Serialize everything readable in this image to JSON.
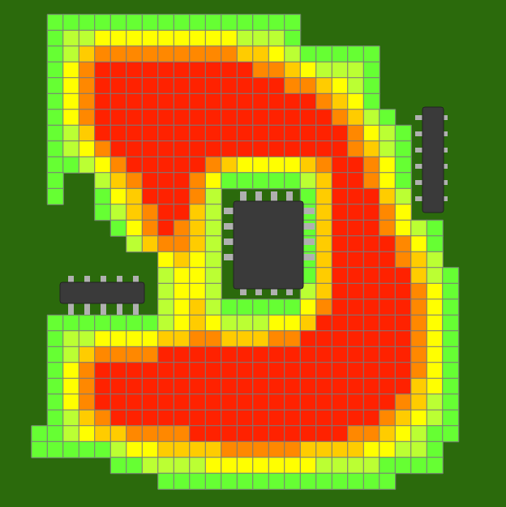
{
  "chart_data": {
    "type": "heatmap",
    "tick_labels": false,
    "color_range": [
      1,
      6
    ],
    "colors": [
      "#66ff33",
      "#bbff33",
      "#ffff00",
      "#ffcc00",
      "#ff8800",
      "#ff2200"
    ],
    "cells": [
      [
        null,
        1,
        1,
        1,
        1,
        1,
        1,
        1,
        1,
        1,
        1,
        1,
        1,
        1,
        1,
        1,
        1,
        null,
        null,
        null,
        null,
        null,
        null,
        null,
        null,
        null,
        null
      ],
      [
        null,
        1,
        2,
        2,
        3,
        3,
        3,
        3,
        3,
        3,
        3,
        3,
        3,
        2,
        2,
        2,
        1,
        null,
        null,
        null,
        null,
        null,
        null,
        null,
        null,
        null,
        null
      ],
      [
        null,
        1,
        2,
        4,
        5,
        5,
        5,
        5,
        5,
        5,
        5,
        5,
        5,
        4,
        4,
        3,
        2,
        1,
        1,
        1,
        1,
        1,
        null,
        null,
        null,
        null,
        null
      ],
      [
        null,
        1,
        3,
        5,
        6,
        6,
        6,
        6,
        6,
        6,
        6,
        6,
        6,
        6,
        5,
        5,
        4,
        3,
        2,
        2,
        2,
        1,
        null,
        null,
        null,
        null,
        null
      ],
      [
        null,
        1,
        3,
        5,
        6,
        6,
        6,
        6,
        6,
        6,
        6,
        6,
        6,
        6,
        6,
        6,
        5,
        5,
        4,
        3,
        2,
        1,
        null,
        null,
        null,
        null,
        null
      ],
      [
        null,
        1,
        3,
        5,
        6,
        6,
        6,
        6,
        6,
        6,
        6,
        6,
        6,
        6,
        6,
        6,
        6,
        6,
        5,
        4,
        3,
        1,
        null,
        null,
        null,
        null,
        null
      ],
      [
        null,
        1,
        3,
        5,
        6,
        6,
        6,
        6,
        6,
        6,
        6,
        6,
        6,
        6,
        6,
        6,
        6,
        6,
        6,
        5,
        4,
        2,
        1,
        null,
        null,
        null,
        null
      ],
      [
        null,
        1,
        2,
        4,
        6,
        6,
        6,
        6,
        6,
        6,
        6,
        6,
        6,
        6,
        6,
        6,
        6,
        6,
        6,
        6,
        5,
        3,
        2,
        1,
        null,
        null,
        null
      ],
      [
        null,
        1,
        2,
        3,
        5,
        6,
        6,
        6,
        6,
        6,
        6,
        6,
        6,
        6,
        6,
        6,
        6,
        6,
        6,
        6,
        5,
        4,
        2,
        1,
        null,
        null,
        null
      ],
      [
        null,
        1,
        1,
        2,
        3,
        5,
        6,
        6,
        6,
        6,
        6,
        5,
        4,
        3,
        3,
        3,
        3,
        4,
        5,
        6,
        6,
        5,
        3,
        1,
        null,
        null,
        null
      ],
      [
        null,
        1,
        null,
        null,
        2,
        4,
        5,
        6,
        6,
        6,
        5,
        3,
        1,
        1,
        1,
        1,
        1,
        2,
        4,
        6,
        6,
        5,
        3,
        1,
        null,
        null,
        null
      ],
      [
        null,
        1,
        null,
        null,
        1,
        3,
        4,
        6,
        6,
        6,
        5,
        2,
        null,
        null,
        null,
        null,
        null,
        1,
        4,
        6,
        6,
        6,
        4,
        2,
        null,
        null,
        null
      ],
      [
        null,
        null,
        null,
        null,
        1,
        2,
        4,
        5,
        6,
        6,
        4,
        2,
        null,
        null,
        null,
        null,
        null,
        1,
        4,
        6,
        6,
        6,
        5,
        3,
        null,
        null,
        null
      ],
      [
        null,
        null,
        null,
        null,
        null,
        1,
        3,
        5,
        6,
        5,
        4,
        2,
        null,
        null,
        null,
        null,
        null,
        1,
        4,
        6,
        6,
        6,
        5,
        3,
        2,
        1,
        null
      ],
      [
        null,
        null,
        null,
        null,
        null,
        null,
        2,
        4,
        5,
        5,
        4,
        2,
        null,
        null,
        null,
        null,
        null,
        1,
        4,
        6,
        6,
        6,
        6,
        5,
        3,
        1,
        null
      ],
      [
        null,
        null,
        null,
        null,
        null,
        null,
        null,
        null,
        3,
        4,
        3,
        2,
        null,
        null,
        null,
        null,
        null,
        1,
        4,
        6,
        6,
        6,
        6,
        5,
        4,
        2,
        null
      ],
      [
        null,
        null,
        null,
        null,
        null,
        null,
        null,
        null,
        2,
        3,
        3,
        2,
        null,
        null,
        null,
        null,
        null,
        1,
        4,
        6,
        6,
        6,
        6,
        6,
        4,
        2,
        1
      ],
      [
        null,
        null,
        null,
        null,
        null,
        null,
        null,
        null,
        2,
        3,
        3,
        2,
        null,
        null,
        null,
        null,
        null,
        2,
        4,
        6,
        6,
        6,
        6,
        6,
        5,
        3,
        1
      ],
      [
        null,
        null,
        null,
        null,
        null,
        null,
        null,
        null,
        2,
        3,
        4,
        2,
        1,
        1,
        1,
        1,
        1,
        3,
        5,
        6,
        6,
        6,
        6,
        6,
        5,
        3,
        1
      ],
      [
        null,
        1,
        1,
        1,
        1,
        1,
        1,
        1,
        2,
        3,
        4,
        3,
        2,
        2,
        2,
        3,
        3,
        4,
        6,
        6,
        6,
        6,
        6,
        6,
        5,
        3,
        1
      ],
      [
        null,
        1,
        2,
        2,
        3,
        3,
        3,
        3,
        4,
        4,
        5,
        5,
        4,
        4,
        4,
        5,
        5,
        6,
        6,
        6,
        6,
        6,
        6,
        6,
        5,
        3,
        1
      ],
      [
        null,
        1,
        2,
        4,
        5,
        5,
        5,
        5,
        6,
        6,
        6,
        6,
        6,
        6,
        6,
        6,
        6,
        6,
        6,
        6,
        6,
        6,
        6,
        6,
        5,
        3,
        1
      ],
      [
        null,
        1,
        3,
        5,
        6,
        6,
        6,
        6,
        6,
        6,
        6,
        6,
        6,
        6,
        6,
        6,
        6,
        6,
        6,
        6,
        6,
        6,
        6,
        6,
        5,
        3,
        1
      ],
      [
        null,
        1,
        3,
        5,
        6,
        6,
        6,
        6,
        6,
        6,
        6,
        6,
        6,
        6,
        6,
        6,
        6,
        6,
        6,
        6,
        6,
        6,
        6,
        6,
        4,
        3,
        1
      ],
      [
        null,
        1,
        3,
        5,
        6,
        6,
        6,
        6,
        6,
        6,
        6,
        6,
        6,
        6,
        6,
        6,
        6,
        6,
        6,
        6,
        6,
        6,
        6,
        5,
        4,
        2,
        1
      ],
      [
        null,
        1,
        2,
        4,
        5,
        6,
        6,
        6,
        6,
        6,
        6,
        6,
        6,
        6,
        6,
        6,
        6,
        6,
        6,
        6,
        6,
        6,
        5,
        4,
        3,
        2,
        1
      ],
      [
        1,
        1,
        2,
        3,
        4,
        4,
        5,
        5,
        5,
        5,
        6,
        6,
        6,
        6,
        6,
        6,
        6,
        6,
        6,
        6,
        5,
        5,
        4,
        3,
        2,
        1,
        1
      ],
      [
        1,
        1,
        1,
        1,
        1,
        2,
        3,
        3,
        4,
        4,
        4,
        4,
        5,
        5,
        5,
        5,
        5,
        4,
        4,
        4,
        4,
        3,
        3,
        2,
        2,
        1,
        null
      ],
      [
        null,
        null,
        null,
        null,
        null,
        1,
        1,
        2,
        2,
        2,
        2,
        3,
        3,
        3,
        3,
        3,
        3,
        3,
        2,
        2,
        2,
        2,
        1,
        1,
        1,
        1,
        null
      ],
      [
        null,
        null,
        null,
        null,
        null,
        null,
        null,
        null,
        1,
        1,
        1,
        1,
        1,
        1,
        1,
        1,
        1,
        1,
        1,
        1,
        1,
        1,
        1,
        null,
        null,
        null,
        null
      ]
    ]
  }
}
